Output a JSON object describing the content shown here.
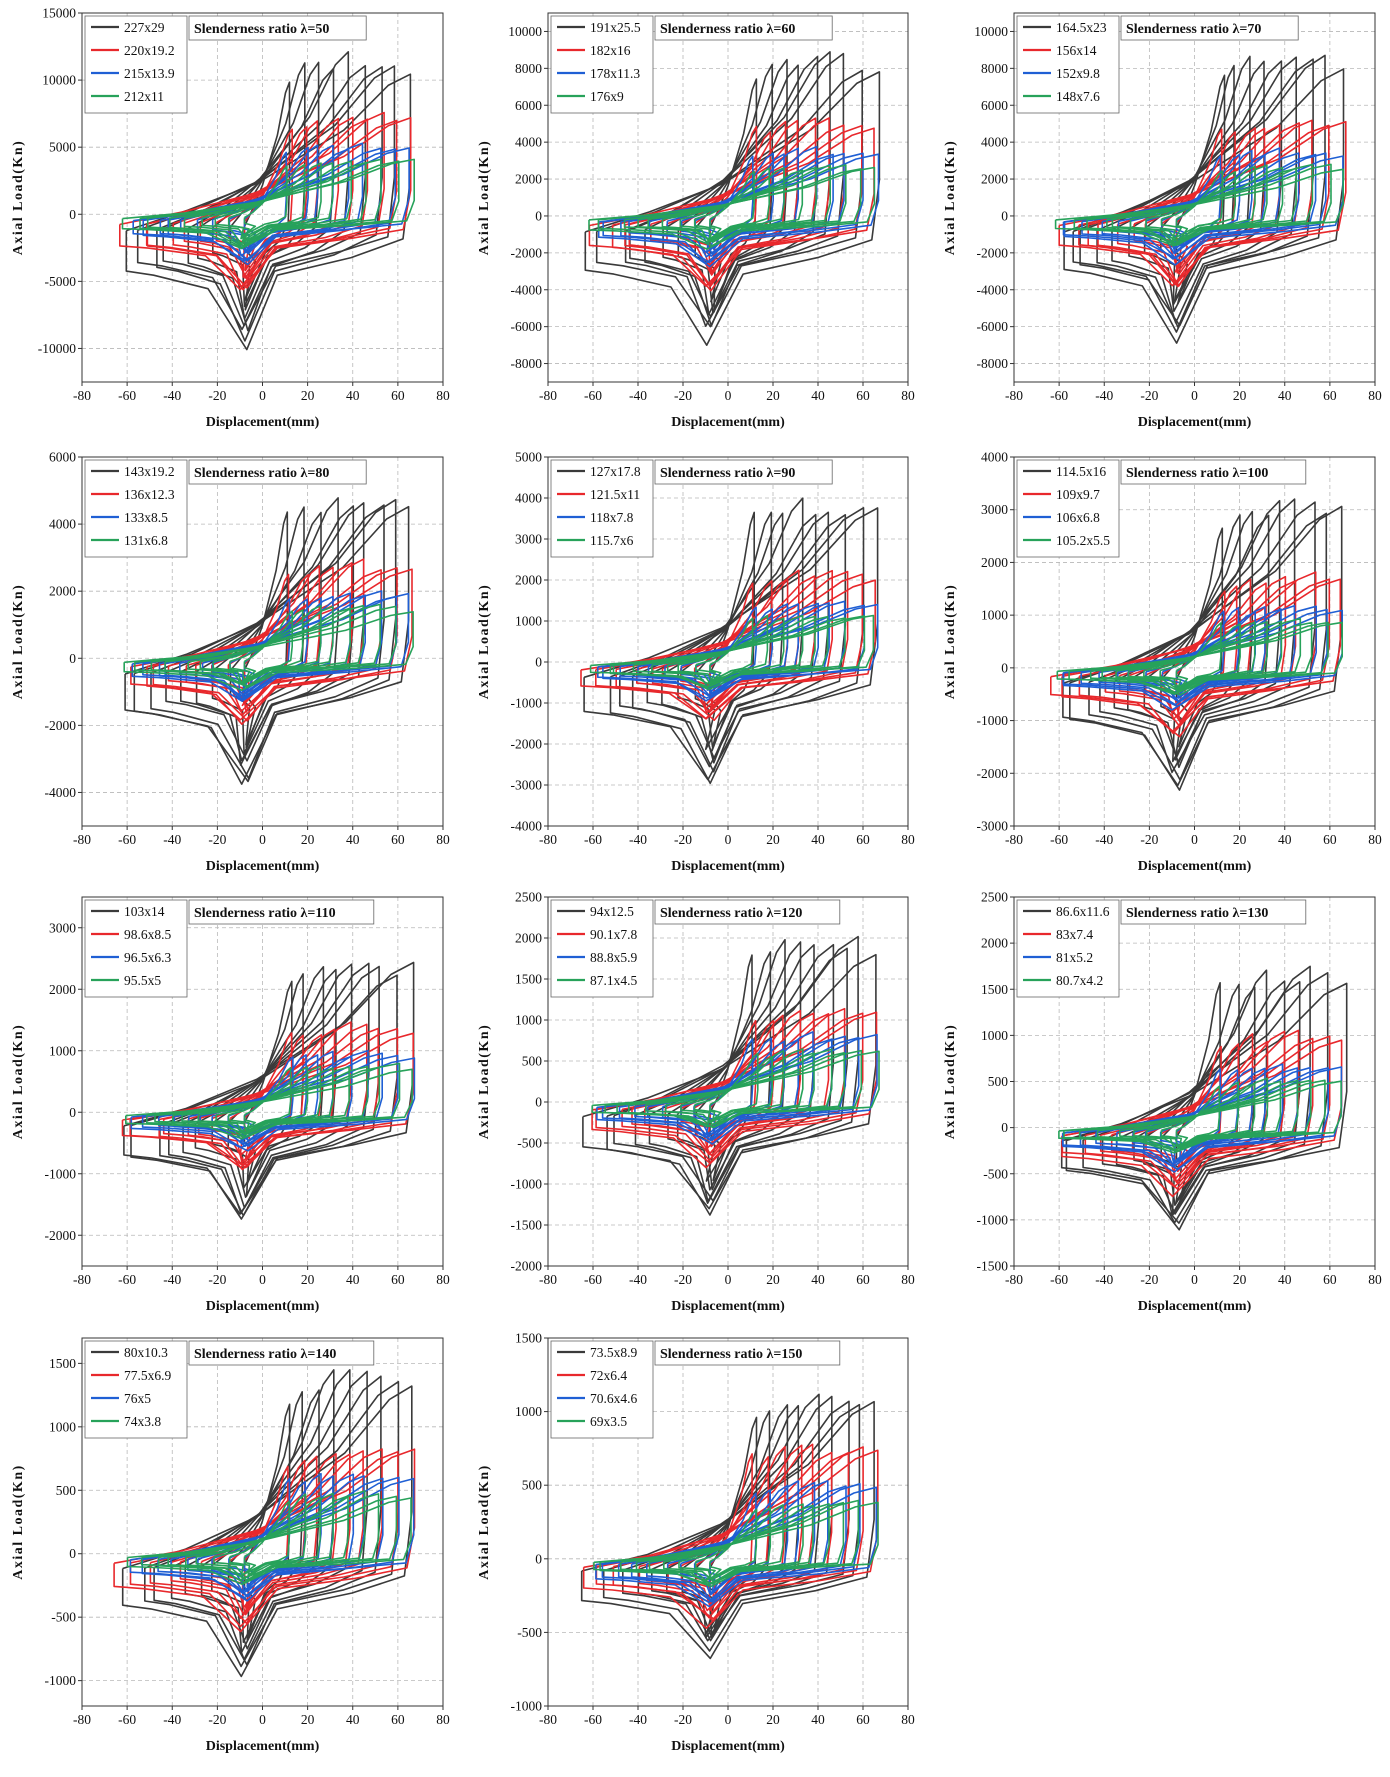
{
  "figure": {
    "series_colors": [
      "#3a3a3a",
      "#e8282c",
      "#1f5fd4",
      "#27a25a"
    ]
  },
  "chart_data": [
    {
      "type": "line",
      "title": "Slenderness ratio λ=50",
      "xlabel": "Displacement(mm)",
      "ylabel": "Axial Load(Kn)",
      "xlim": [
        -80,
        80
      ],
      "ylim": [
        -12500,
        15000
      ],
      "xticks": [
        -80,
        -60,
        -40,
        -20,
        0,
        20,
        40,
        60,
        80
      ],
      "yticks": [
        -10000,
        -5000,
        0,
        5000,
        10000,
        15000
      ],
      "grid": true,
      "legend": "top-left",
      "series": [
        {
          "name": "227x29",
          "peak_tension": 12000,
          "peak_compression": -10200
        },
        {
          "name": "220x19.2",
          "peak_tension": 7600,
          "peak_compression": -6300
        },
        {
          "name": "215x13.9",
          "peak_tension": 5300,
          "peak_compression": -4000
        },
        {
          "name": "212x11",
          "peak_tension": 4200,
          "peak_compression": -2700
        }
      ]
    },
    {
      "type": "line",
      "title": "Slenderness ratio λ=60",
      "xlabel": "Displacement(mm)",
      "ylabel": "Axial Load(Kn)",
      "xlim": [
        -80,
        80
      ],
      "ylim": [
        -9000,
        11000
      ],
      "xticks": [
        -80,
        -60,
        -40,
        -20,
        0,
        20,
        40,
        60,
        80
      ],
      "yticks": [
        -8000,
        -6000,
        -4000,
        -2000,
        0,
        2000,
        4000,
        6000,
        8000,
        10000
      ],
      "grid": true,
      "legend": "top-left",
      "series": [
        {
          "name": "191x25.5",
          "peak_tension": 8800,
          "peak_compression": -7200
        },
        {
          "name": "182x16",
          "peak_tension": 5300,
          "peak_compression": -4300
        },
        {
          "name": "178x11.3",
          "peak_tension": 3700,
          "peak_compression": -2800
        },
        {
          "name": "176x9",
          "peak_tension": 2800,
          "peak_compression": -1800
        }
      ]
    },
    {
      "type": "line",
      "title": "Slenderness ratio λ=70",
      "xlabel": "Displacement(mm)",
      "ylabel": "Axial Load(Kn)",
      "xlim": [
        -80,
        80
      ],
      "ylim": [
        -9000,
        11000
      ],
      "xticks": [
        -80,
        -60,
        -40,
        -20,
        0,
        20,
        40,
        60,
        80
      ],
      "yticks": [
        -8000,
        -6000,
        -4000,
        -2000,
        0,
        2000,
        4000,
        6000,
        8000,
        10000
      ],
      "grid": true,
      "legend": "top-left",
      "series": [
        {
          "name": "164.5x23",
          "peak_tension": 8800,
          "peak_compression": -7200
        },
        {
          "name": "156x14",
          "peak_tension": 5300,
          "peak_compression": -4300
        },
        {
          "name": "152x9.8",
          "peak_tension": 3700,
          "peak_compression": -2800
        },
        {
          "name": "148x7.6",
          "peak_tension": 2800,
          "peak_compression": -1800
        }
      ]
    },
    {
      "type": "line",
      "title": "Slenderness ratio λ=80",
      "xlabel": "Displacement(mm)",
      "ylabel": "Axial Load(Kn)",
      "xlim": [
        -80,
        80
      ],
      "ylim": [
        -5000,
        6000
      ],
      "xticks": [
        -80,
        -60,
        -40,
        -20,
        0,
        20,
        40,
        60,
        80
      ],
      "yticks": [
        -4000,
        -2000,
        0,
        2000,
        4000,
        6000
      ],
      "grid": true,
      "legend": "top-left",
      "series": [
        {
          "name": "143x19.2",
          "peak_tension": 4900,
          "peak_compression": -3900
        },
        {
          "name": "136x12.3",
          "peak_tension": 2900,
          "peak_compression": -2100
        },
        {
          "name": "133x8.5",
          "peak_tension": 2000,
          "peak_compression": -1400
        },
        {
          "name": "131x6.8",
          "peak_tension": 1600,
          "peak_compression": -1000
        }
      ]
    },
    {
      "type": "line",
      "title": "Slenderness ratio λ=90",
      "xlabel": "Displacement(mm)",
      "ylabel": "Axial Load(Kn)",
      "xlim": [
        -80,
        80
      ],
      "ylim": [
        -4000,
        5000
      ],
      "xticks": [
        -80,
        -60,
        -40,
        -20,
        0,
        20,
        40,
        60,
        80
      ],
      "yticks": [
        -4000,
        -3000,
        -2000,
        -1000,
        0,
        1000,
        2000,
        3000,
        4000,
        5000
      ],
      "grid": true,
      "legend": "top-left",
      "series": [
        {
          "name": "127x17.8",
          "peak_tension": 4000,
          "peak_compression": -3100
        },
        {
          "name": "121.5x11",
          "peak_tension": 2300,
          "peak_compression": -1600
        },
        {
          "name": "118x7.8",
          "peak_tension": 1500,
          "peak_compression": -1000
        },
        {
          "name": "115.7x6",
          "peak_tension": 1200,
          "peak_compression": -700
        }
      ]
    },
    {
      "type": "line",
      "title": "Slenderness ratio λ=100",
      "xlabel": "Displacement(mm)",
      "ylabel": "Axial Load(Kn)",
      "xlim": [
        -80,
        80
      ],
      "ylim": [
        -3000,
        4000
      ],
      "xticks": [
        -80,
        -60,
        -40,
        -20,
        0,
        20,
        40,
        60,
        80
      ],
      "yticks": [
        -3000,
        -2000,
        -1000,
        0,
        1000,
        2000,
        3000,
        4000
      ],
      "grid": true,
      "legend": "top-left",
      "series": [
        {
          "name": "114.5x16",
          "peak_tension": 3200,
          "peak_compression": -2450
        },
        {
          "name": "109x9.7",
          "peak_tension": 1800,
          "peak_compression": -1400
        },
        {
          "name": "106x6.8",
          "peak_tension": 1200,
          "peak_compression": -800
        },
        {
          "name": "105.2x5.5",
          "peak_tension": 950,
          "peak_compression": -550
        }
      ]
    },
    {
      "type": "line",
      "title": "Slenderness ratio λ=110",
      "xlabel": "Displacement(mm)",
      "ylabel": "Axial Load(Kn)",
      "xlim": [
        -80,
        80
      ],
      "ylim": [
        -2500,
        3500
      ],
      "xticks": [
        -80,
        -60,
        -40,
        -20,
        0,
        20,
        40,
        60,
        80
      ],
      "yticks": [
        -2000,
        -1000,
        0,
        1000,
        2000,
        3000
      ],
      "grid": true,
      "legend": "top-left",
      "series": [
        {
          "name": "103x14",
          "peak_tension": 2500,
          "peak_compression": -1850
        },
        {
          "name": "98.6x8.5",
          "peak_tension": 1450,
          "peak_compression": -1050
        },
        {
          "name": "96.5x6.3",
          "peak_tension": 1000,
          "peak_compression": -650
        },
        {
          "name": "95.5x5",
          "peak_tension": 800,
          "peak_compression": -450
        }
      ]
    },
    {
      "type": "line",
      "title": "Slenderness ratio λ=120",
      "xlabel": "Displacement(mm)",
      "ylabel": "Axial Load(Kn)",
      "xlim": [
        -80,
        80
      ],
      "ylim": [
        -2000,
        2500
      ],
      "xticks": [
        -80,
        -60,
        -40,
        -20,
        0,
        20,
        40,
        60,
        80
      ],
      "yticks": [
        -2000,
        -1500,
        -1000,
        -500,
        0,
        500,
        1000,
        1500,
        2000,
        2500
      ],
      "grid": true,
      "legend": "top-left",
      "series": [
        {
          "name": "94x12.5",
          "peak_tension": 2050,
          "peak_compression": -1480
        },
        {
          "name": "90.1x7.8",
          "peak_tension": 1150,
          "peak_compression": -800
        },
        {
          "name": "88.8x5.9",
          "peak_tension": 850,
          "peak_compression": -550
        },
        {
          "name": "87.1x4.5",
          "peak_tension": 650,
          "peak_compression": -350
        }
      ]
    },
    {
      "type": "line",
      "title": "Slenderness ratio λ=130",
      "xlabel": "Displacement(mm)",
      "ylabel": "Axial Load(Kn)",
      "xlim": [
        -80,
        80
      ],
      "ylim": [
        -1500,
        2500
      ],
      "xticks": [
        -80,
        -60,
        -40,
        -20,
        0,
        20,
        40,
        60,
        80
      ],
      "yticks": [
        -1500,
        -1000,
        -500,
        0,
        500,
        1000,
        1500,
        2000,
        2500
      ],
      "grid": true,
      "legend": "top-left",
      "series": [
        {
          "name": "86.6x11.6",
          "peak_tension": 1750,
          "peak_compression": -1200
        },
        {
          "name": "83x7.4",
          "peak_tension": 1050,
          "peak_compression": -750
        },
        {
          "name": "81x5.2",
          "peak_tension": 700,
          "peak_compression": -500
        },
        {
          "name": "80.7x4.2",
          "peak_tension": 550,
          "peak_compression": -300
        }
      ]
    },
    {
      "type": "line",
      "title": "Slenderness ratio λ=140",
      "xlabel": "Displacement(mm)",
      "ylabel": "Axial Load(Kn)",
      "xlim": [
        -80,
        80
      ],
      "ylim": [
        -1200,
        1700
      ],
      "xticks": [
        -80,
        -60,
        -40,
        -20,
        0,
        20,
        40,
        60,
        80
      ],
      "yticks": [
        -1000,
        -500,
        0,
        500,
        1000,
        1500
      ],
      "grid": true,
      "legend": "top-left",
      "series": [
        {
          "name": "80x10.3",
          "peak_tension": 1450,
          "peak_compression": -970
        },
        {
          "name": "77.5x6.9",
          "peak_tension": 850,
          "peak_compression": -620
        },
        {
          "name": "76x5",
          "peak_tension": 650,
          "peak_compression": -400
        },
        {
          "name": "74x3.8",
          "peak_tension": 500,
          "peak_compression": -250
        }
      ]
    },
    {
      "type": "line",
      "title": "Slenderness ratio λ=150",
      "xlabel": "Displacement(mm)",
      "ylabel": "Axial Load(Kn)",
      "xlim": [
        -80,
        80
      ],
      "ylim": [
        -1000,
        1500
      ],
      "xticks": [
        -80,
        -60,
        -40,
        -20,
        0,
        20,
        40,
        60,
        80
      ],
      "yticks": [
        -1000,
        -500,
        0,
        500,
        1000,
        1500
      ],
      "grid": true,
      "legend": "top-left",
      "series": [
        {
          "name": "73.5x8.9",
          "peak_tension": 1150,
          "peak_compression": -690
        },
        {
          "name": "72x6.4",
          "peak_tension": 800,
          "peak_compression": -480
        },
        {
          "name": "70.6x4.6",
          "peak_tension": 550,
          "peak_compression": -330
        },
        {
          "name": "69x3.5",
          "peak_tension": 400,
          "peak_compression": -200
        }
      ]
    }
  ]
}
